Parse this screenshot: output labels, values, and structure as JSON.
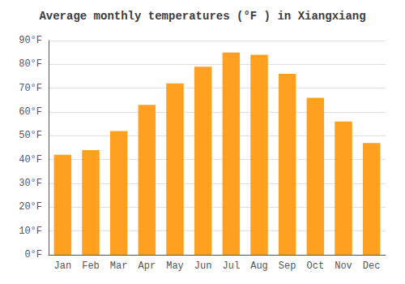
{
  "chart_data": {
    "type": "bar",
    "title": "Average monthly temperatures (°F ) in Xiangxiang",
    "categories": [
      "Jan",
      "Feb",
      "Mar",
      "Apr",
      "May",
      "Jun",
      "Jul",
      "Aug",
      "Sep",
      "Oct",
      "Nov",
      "Dec"
    ],
    "values": [
      42,
      44,
      52,
      63,
      72,
      79,
      85,
      84,
      76,
      66,
      56,
      47
    ],
    "color": "#FFA020",
    "ylim": [
      0,
      90
    ],
    "yticks": [
      {
        "value": 0,
        "label": "0°F"
      },
      {
        "value": 10,
        "label": "10°F"
      },
      {
        "value": 20,
        "label": "20°F"
      },
      {
        "value": 30,
        "label": "30°F"
      },
      {
        "value": 40,
        "label": "40°F"
      },
      {
        "value": 50,
        "label": "50°F"
      },
      {
        "value": 60,
        "label": "60°F"
      },
      {
        "value": 70,
        "label": "70°F"
      },
      {
        "value": 80,
        "label": "80°F"
      },
      {
        "value": 90,
        "label": "90°F"
      }
    ],
    "grid": true
  }
}
